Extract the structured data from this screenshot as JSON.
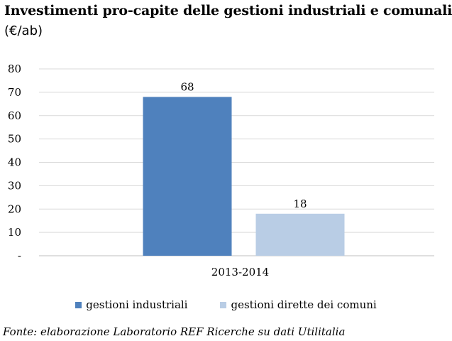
{
  "title": "Investimenti pro-capite delle gestioni industriali e comunali",
  "subtitle": "(€/ab)",
  "source": "Fonte: elaborazione Laboratorio REF Ricerche su dati Utilitalia",
  "chart_data": {
    "type": "bar",
    "title": "Investimenti pro-capite delle gestioni industriali e comunali",
    "ylabel": "",
    "xlabel": "",
    "categories": [
      "2013-2014"
    ],
    "series": [
      {
        "name": "gestioni industriali",
        "values": [
          68
        ],
        "color": "#4f81bd"
      },
      {
        "name": "gestioni dirette dei comuni",
        "values": [
          18
        ],
        "color": "#b9cde5"
      }
    ],
    "ylim": [
      0,
      80
    ],
    "yticks": [
      0,
      10,
      20,
      30,
      40,
      50,
      60,
      70,
      80
    ],
    "ytick_labels": [
      "-",
      "10",
      "20",
      "30",
      "40",
      "50",
      "60",
      "70",
      "80"
    ],
    "data_labels": [
      "68",
      "18"
    ],
    "grid": true,
    "legend_position": "bottom"
  }
}
